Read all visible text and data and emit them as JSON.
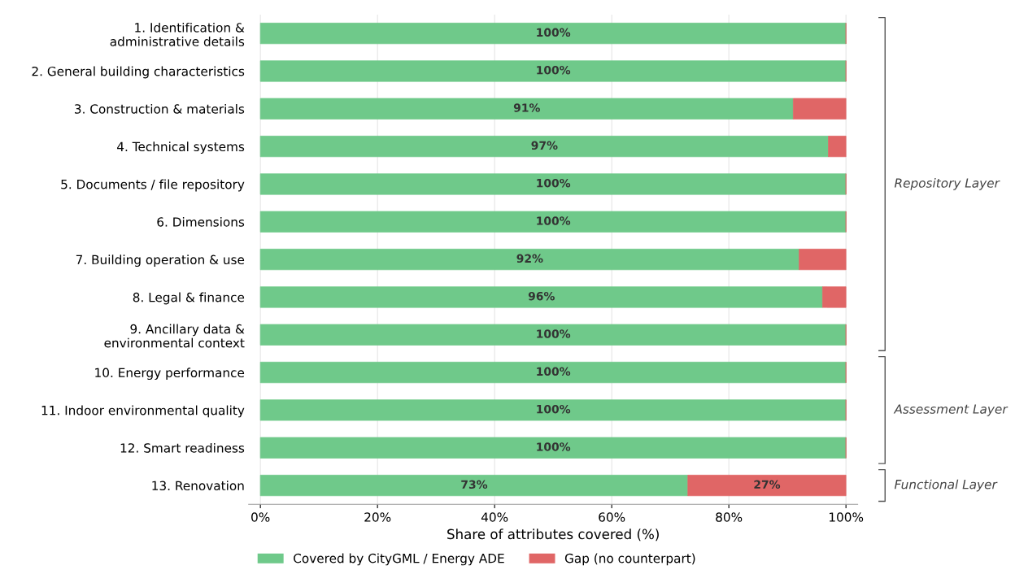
{
  "chart_data": {
    "type": "bar",
    "orientation": "horizontal",
    "stacked": true,
    "categories": [
      "1. Identification &\nadministrative details",
      "2. General building characteristics",
      "3. Construction & materials",
      "4. Technical systems",
      "5. Documents / file repository",
      "6. Dimensions",
      "7. Building operation & use",
      "8. Legal & finance",
      "9. Ancillary data &\nenvironmental context",
      "10. Energy performance",
      "11. Indoor environmental quality",
      "12. Smart readiness",
      "13. Renovation"
    ],
    "series": [
      {
        "name": "Covered by CityGML / Energy ADE",
        "color": "#6fc98a",
        "values": [
          100,
          100,
          91,
          97,
          100,
          100,
          92,
          96,
          100,
          100,
          100,
          100,
          73
        ],
        "value_labels": [
          "100%",
          "100%",
          "91%",
          "97%",
          "100%",
          "100%",
          "92%",
          "96%",
          "100%",
          "100%",
          "100%",
          "100%",
          "73%"
        ]
      },
      {
        "name": "Gap (no counterpart)",
        "color": "#e06666",
        "values": [
          0,
          0,
          9,
          3,
          0,
          0,
          8,
          4,
          0,
          0,
          0,
          0,
          27
        ],
        "value_labels": [
          null,
          null,
          null,
          null,
          null,
          null,
          null,
          null,
          null,
          null,
          null,
          null,
          "27%"
        ]
      }
    ],
    "xlabel": "Share of attributes covered (%)",
    "xlim": [
      -2,
      102
    ],
    "xticks": [
      {
        "value": 0,
        "label": "0%"
      },
      {
        "value": 20,
        "label": "20%"
      },
      {
        "value": 40,
        "label": "40%"
      },
      {
        "value": 60,
        "label": "60%"
      },
      {
        "value": 80,
        "label": "80%"
      },
      {
        "value": 100,
        "label": "100%"
      }
    ],
    "grid": "x",
    "legend": "bottom",
    "annotations": [
      "Repository Layer",
      "Assessment Layer",
      "Functional Layer"
    ]
  }
}
